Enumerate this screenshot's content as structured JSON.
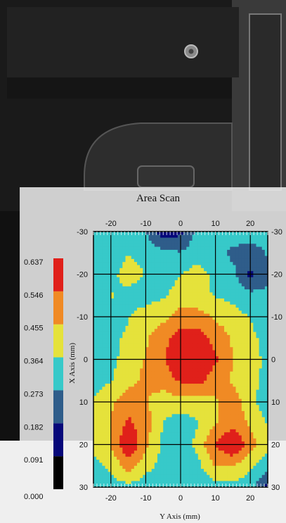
{
  "colors": {
    "background_dark": "#141414",
    "panel": "#e6e6e6",
    "levels": [
      "#000000",
      "#06087a",
      "#2f5d8a",
      "#37c9c9",
      "#e5e23b",
      "#f08a24",
      "#e0201a"
    ]
  },
  "chart_data": {
    "type": "heatmap",
    "title": "Area Scan",
    "xlabel": "Y Axis (mm)",
    "ylabel": "X Axis (mm)",
    "x_ticks": [
      "-20",
      "-10",
      "0",
      "10",
      "20"
    ],
    "y_ticks_left": [
      "-30",
      "-20",
      "-10",
      "0",
      "10",
      "20",
      "30"
    ],
    "y_ticks_right": [
      "-30",
      "-20",
      "-10",
      "0",
      "10",
      "20",
      "30"
    ],
    "x": [
      -25,
      -20,
      -15,
      -10,
      -5,
      0,
      5,
      10,
      15,
      20,
      25
    ],
    "y": [
      -30,
      -25,
      -20,
      -15,
      -10,
      -5,
      0,
      5,
      10,
      15,
      20,
      25,
      30
    ],
    "xlim": [
      -25,
      25
    ],
    "ylim": [
      -30,
      30
    ],
    "grid": true,
    "levels": [
      0.0,
      0.091,
      0.182,
      0.273,
      0.364,
      0.455,
      0.546,
      0.637
    ],
    "colorbar_labels": [
      "0.637",
      "0.546",
      "0.455",
      "0.364",
      "0.273",
      "0.182",
      "0.091",
      "0.000"
    ],
    "z": [
      [
        0.3,
        0.31,
        0.32,
        0.28,
        0.12,
        0.16,
        0.3,
        0.32,
        0.33,
        0.31,
        0.3
      ],
      [
        0.3,
        0.31,
        0.36,
        0.34,
        0.3,
        0.28,
        0.33,
        0.31,
        0.25,
        0.24,
        0.28
      ],
      [
        0.31,
        0.34,
        0.4,
        0.36,
        0.33,
        0.36,
        0.4,
        0.34,
        0.3,
        0.16,
        0.26
      ],
      [
        0.32,
        0.37,
        0.34,
        0.33,
        0.35,
        0.4,
        0.38,
        0.36,
        0.34,
        0.3,
        0.29
      ],
      [
        0.36,
        0.32,
        0.36,
        0.4,
        0.43,
        0.5,
        0.5,
        0.44,
        0.4,
        0.36,
        0.33
      ],
      [
        0.32,
        0.34,
        0.38,
        0.44,
        0.52,
        0.58,
        0.58,
        0.52,
        0.44,
        0.38,
        0.34
      ],
      [
        0.3,
        0.34,
        0.4,
        0.46,
        0.54,
        0.62,
        0.62,
        0.56,
        0.46,
        0.4,
        0.34
      ],
      [
        0.33,
        0.36,
        0.42,
        0.48,
        0.5,
        0.56,
        0.58,
        0.5,
        0.44,
        0.38,
        0.35
      ],
      [
        0.37,
        0.44,
        0.52,
        0.46,
        0.4,
        0.42,
        0.4,
        0.44,
        0.5,
        0.4,
        0.3
      ],
      [
        0.4,
        0.46,
        0.56,
        0.5,
        0.36,
        0.32,
        0.36,
        0.44,
        0.52,
        0.44,
        0.36
      ],
      [
        0.38,
        0.46,
        0.64,
        0.48,
        0.34,
        0.28,
        0.4,
        0.56,
        0.64,
        0.5,
        0.38
      ],
      [
        0.34,
        0.38,
        0.5,
        0.4,
        0.33,
        0.31,
        0.34,
        0.46,
        0.46,
        0.38,
        0.32
      ],
      [
        0.3,
        0.32,
        0.34,
        0.31,
        0.29,
        0.3,
        0.31,
        0.32,
        0.33,
        0.31,
        0.14
      ]
    ]
  }
}
